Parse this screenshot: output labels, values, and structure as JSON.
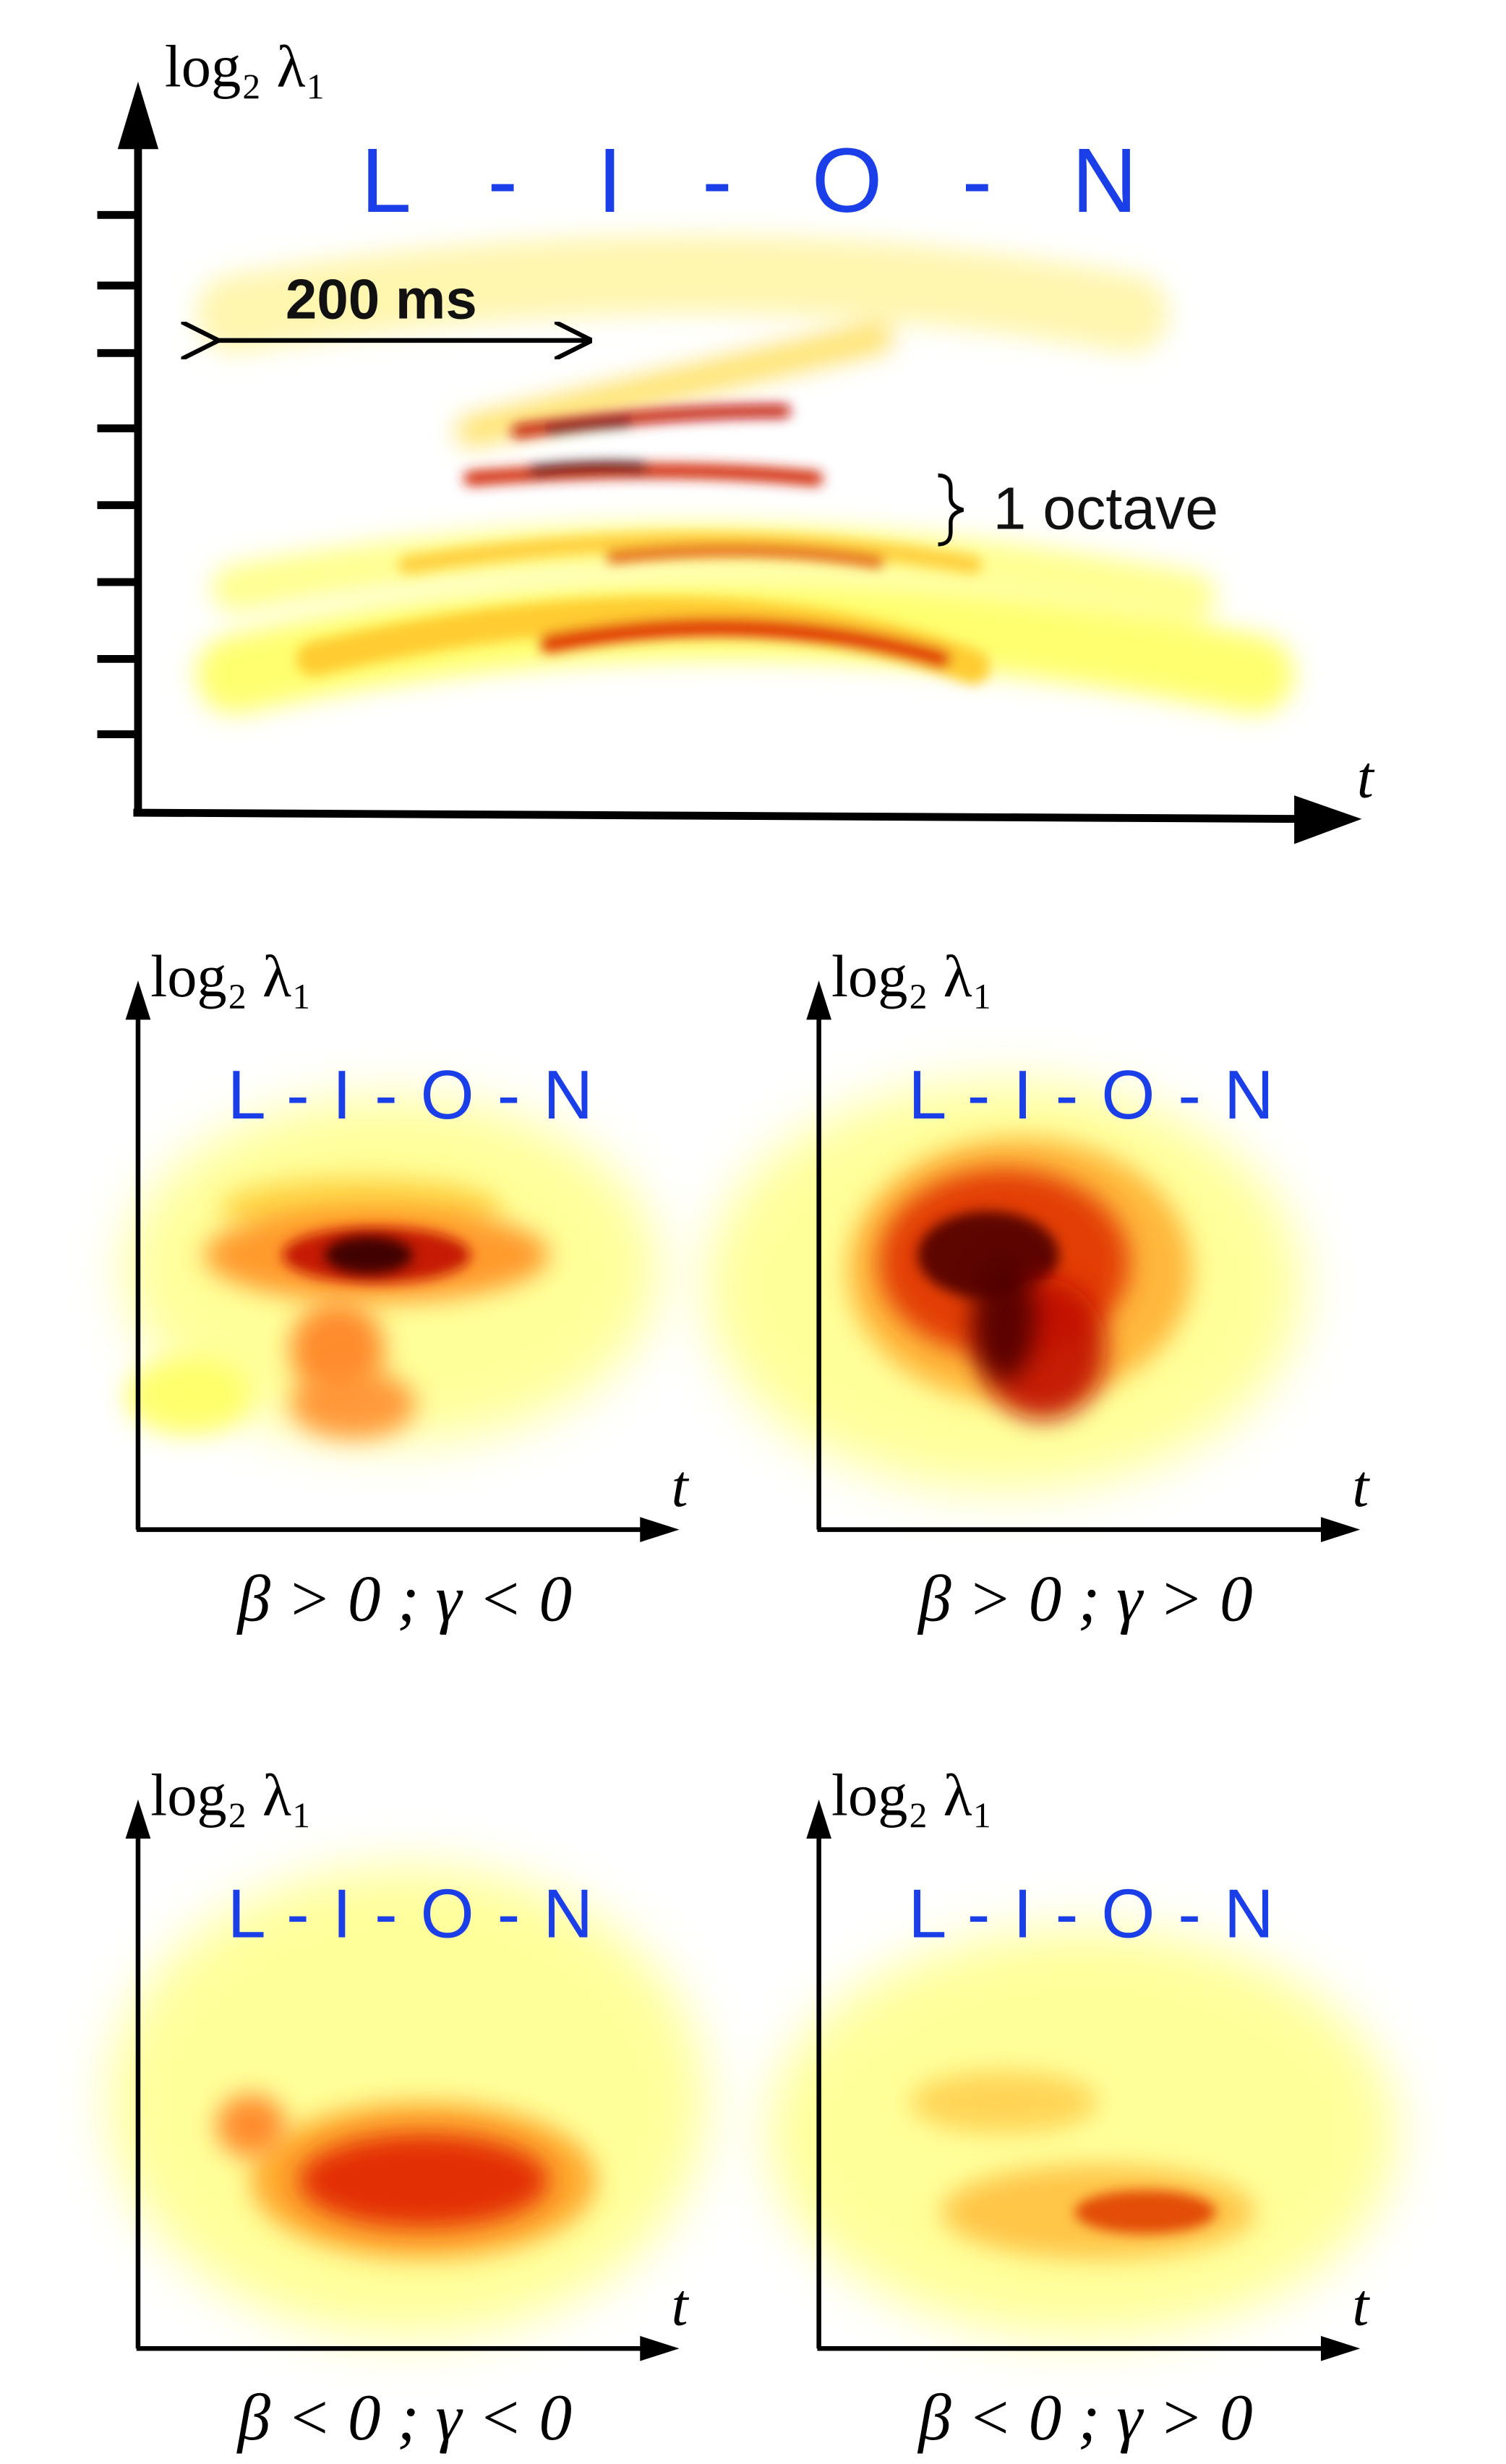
{
  "main": {
    "y_label": "log₂ λ₁",
    "word": "L - I - O - N",
    "duration": "200 ms",
    "interval": "1 octave",
    "x_label": "t"
  },
  "panels": [
    {
      "y_label": "log₂ λ₁",
      "word": "L - I - O - N",
      "x_label": "t",
      "caption": "β > 0 ; γ < 0"
    },
    {
      "y_label": "log₂ λ₁",
      "word": "L - I - O - N",
      "x_label": "t",
      "caption": "β > 0 ; γ > 0"
    },
    {
      "y_label": "log₂ λ₁",
      "word": "L - I - O - N",
      "x_label": "t",
      "caption": "β < 0 ; γ < 0"
    },
    {
      "y_label": "log₂ λ₁",
      "word": "L - I - O - N",
      "x_label": "t",
      "caption": "β < 0 ; γ > 0"
    }
  ]
}
